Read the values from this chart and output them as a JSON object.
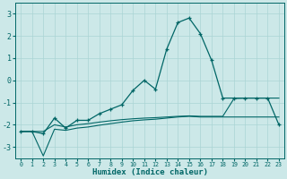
{
  "xlabel": "Humidex (Indice chaleur)",
  "bg_color": "#cce8e8",
  "grid_color": "#aad4d4",
  "line_color": "#006666",
  "ylim": [
    -3.5,
    3.5
  ],
  "yticks": [
    -3,
    -2,
    -1,
    0,
    1,
    2,
    3
  ],
  "xticks": [
    0,
    1,
    2,
    3,
    4,
    5,
    6,
    7,
    8,
    9,
    10,
    11,
    12,
    13,
    14,
    15,
    16,
    17,
    18,
    19,
    20,
    21,
    22,
    23
  ],
  "x": [
    0,
    1,
    2,
    3,
    4,
    5,
    6,
    7,
    8,
    9,
    10,
    11,
    12,
    13,
    14,
    15,
    16,
    17,
    18,
    19,
    20,
    21,
    22,
    23
  ],
  "main_y": [
    -2.3,
    -2.3,
    -2.4,
    -1.7,
    -2.15,
    -1.8,
    -1.8,
    -1.5,
    -1.3,
    -1.1,
    -0.45,
    0.0,
    -0.4,
    1.4,
    2.6,
    2.8,
    2.1,
    0.9,
    -0.8,
    -0.8,
    -0.8,
    -0.8,
    -0.8,
    -2.0
  ],
  "line2_y": [
    -2.3,
    -2.3,
    -2.3,
    -2.0,
    -2.1,
    -2.0,
    -1.95,
    -1.88,
    -1.82,
    -1.77,
    -1.73,
    -1.7,
    -1.68,
    -1.65,
    -1.62,
    -1.6,
    -1.62,
    -1.62,
    -1.62,
    -0.82,
    -0.8,
    -0.8,
    -0.8,
    -0.8
  ],
  "line3_y": [
    -2.3,
    -2.3,
    -3.4,
    -2.2,
    -2.25,
    -2.15,
    -2.1,
    -2.02,
    -1.95,
    -1.88,
    -1.82,
    -1.78,
    -1.75,
    -1.7,
    -1.65,
    -1.62,
    -1.65,
    -1.65,
    -1.65,
    -1.65,
    -1.65,
    -1.65,
    -1.65,
    -1.65
  ]
}
